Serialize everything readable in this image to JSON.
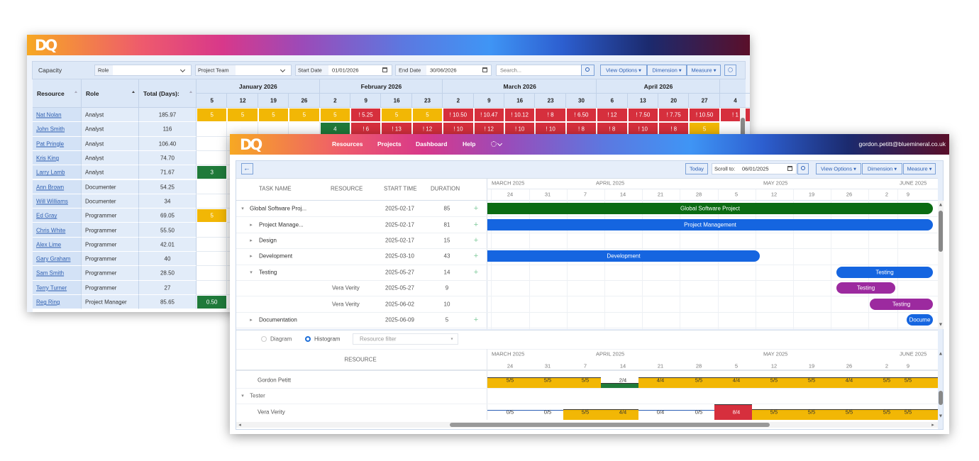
{
  "capacity_window": {
    "logo": "DQ",
    "toolbar": {
      "title": "Capacity",
      "role_filter": "Role",
      "team_filter": "Project Team",
      "start_label": "Start Date",
      "start_date": "01/01/2026",
      "end_label": "End Date",
      "end_date": "30/06/2026",
      "search_placeholder": "Search...",
      "buttons": [
        "View Options ▾",
        "Dimension ▾",
        "Measure ▾"
      ]
    },
    "columns": [
      "Resource",
      "Role",
      "Total (Days):"
    ],
    "months": [
      {
        "label": "January 2026",
        "weeks": [
          "5",
          "12",
          "19",
          "26"
        ]
      },
      {
        "label": "February 2026",
        "weeks": [
          "2",
          "9",
          "16",
          "23"
        ]
      },
      {
        "label": "March 2026",
        "weeks": [
          "2",
          "9",
          "16",
          "23",
          "30"
        ]
      },
      {
        "label": "April 2026",
        "weeks": [
          "6",
          "13",
          "20",
          "27"
        ]
      },
      {
        "label": null,
        "weeks": [
          "4"
        ]
      }
    ],
    "cell_colors": {
      "y": "#f2b705",
      "r": "#d62f3d",
      "g": "#1f7a3a"
    },
    "rows": [
      {
        "name": "Nat Nolan",
        "role": "Analyst",
        "total": "185.97",
        "cells": [
          "5",
          "5",
          "5",
          "5",
          "5",
          "! 5.25",
          "5",
          "5",
          "! 10.50",
          "! 10.47",
          "! 10.12",
          "! 8",
          "! 6.50",
          "! 12",
          "! 7.50",
          "! 7.75",
          "! 10.50",
          "! 1"
        ],
        "cell_status": [
          "y",
          "y",
          "y",
          "y",
          "y",
          "r",
          "y",
          "y",
          "r",
          "r",
          "r",
          "r",
          "r",
          "r",
          "r",
          "r",
          "r",
          "r"
        ]
      },
      {
        "name": "John Smith",
        "role": "Analyst",
        "total": "116",
        "cells": [
          null,
          null,
          null,
          null,
          "4",
          "! 6",
          "! 13",
          "! 12",
          "! 10",
          "! 12",
          "! 10",
          "! 10",
          "! 8",
          "! 8",
          "! 10",
          "! 8",
          "5",
          null
        ],
        "cell_status": [
          null,
          null,
          null,
          null,
          "g",
          "r",
          "r",
          "r",
          "r",
          "r",
          "r",
          "r",
          "r",
          "r",
          "r",
          "r",
          "y",
          null
        ]
      },
      {
        "name": "Pat Pringle",
        "role": "Analyst",
        "total": "106.40",
        "cells": [],
        "cell_status": []
      },
      {
        "name": "Kris King",
        "role": "Analyst",
        "total": "74.70",
        "cells": [],
        "cell_status": []
      },
      {
        "name": "Larry Lamb",
        "role": "Analyst",
        "total": "71.67",
        "cells": [
          "3"
        ],
        "cell_status": [
          "g"
        ]
      },
      {
        "name": "Ann Brown",
        "role": "Documenter",
        "total": "54.25",
        "cells": [],
        "cell_status": []
      },
      {
        "name": "Will Williams",
        "role": "Documenter",
        "total": "34",
        "cells": [],
        "cell_status": []
      },
      {
        "name": "Ed Gray",
        "role": "Programmer",
        "total": "69.05",
        "cells": [
          "5"
        ],
        "cell_status": [
          "y"
        ]
      },
      {
        "name": "Chris White",
        "role": "Programmer",
        "total": "55.50",
        "cells": [],
        "cell_status": []
      },
      {
        "name": "Alex Lime",
        "role": "Programmer",
        "total": "42.01",
        "cells": [],
        "cell_status": []
      },
      {
        "name": "Gary Graham",
        "role": "Programmer",
        "total": "40",
        "cells": [],
        "cell_status": []
      },
      {
        "name": "Sam Smith",
        "role": "Programmer",
        "total": "28.50",
        "cells": [],
        "cell_status": []
      },
      {
        "name": "Terry Turner",
        "role": "Programmer",
        "total": "27",
        "cells": [],
        "cell_status": []
      },
      {
        "name": "Reg Ring",
        "role": "Project Manager",
        "total": "85.65",
        "cells": [
          "0.50"
        ],
        "cell_status": [
          "g"
        ]
      }
    ]
  },
  "planner_window": {
    "logo": "DQ",
    "nav": [
      "Resources",
      "Projects",
      "Dashboard",
      "Help"
    ],
    "user": "gordon.petitt@bluemineral.co.uk",
    "toolbar": {
      "today": "Today",
      "scroll_label": "Scroll to:",
      "scroll_date": "06/01/2025",
      "buttons": [
        "View Options ▾",
        "Dimension ▾",
        "Measure ▾"
      ]
    },
    "grid_columns": [
      "TASK NAME",
      "RESOURCE",
      "START TIME",
      "DURATION"
    ],
    "timeline": {
      "months": [
        "MARCH 2025",
        "APRIL 2025",
        "MAY 2025",
        "JUNE 2025"
      ],
      "weeks": [
        "24",
        "31",
        "7",
        "14",
        "21",
        "28",
        "5",
        "12",
        "19",
        "26",
        "2",
        "9"
      ]
    },
    "tasks": [
      {
        "name": "Global Software Proj...",
        "resource": null,
        "start": "2025-02-17",
        "duration": 85,
        "bar_label": "Global Software Project",
        "bar_color": "#0b6b12"
      },
      {
        "name": "Project Manage...",
        "resource": null,
        "start": "2025-02-17",
        "duration": 81,
        "bar_label": "Project Management",
        "bar_color": "#1565e0"
      },
      {
        "name": "Design",
        "resource": null,
        "start": "2025-02-17",
        "duration": 15,
        "bar_label": null,
        "bar_color": null
      },
      {
        "name": "Development",
        "resource": null,
        "start": "2025-03-10",
        "duration": 43,
        "bar_label": "Development",
        "bar_color": "#1565e0"
      },
      {
        "name": "Testing",
        "resource": null,
        "start": "2025-05-27",
        "duration": 14,
        "bar_label": "Testing",
        "bar_color": "#1565e0"
      },
      {
        "name": null,
        "resource": "Vera Verity",
        "start": "2025-05-27",
        "duration": 9,
        "bar_label": "Testing",
        "bar_color": "#9c2a9f"
      },
      {
        "name": null,
        "resource": "Vera Verity",
        "start": "2025-06-02",
        "duration": 10,
        "bar_label": "Testing",
        "bar_color": "#9c2a9f"
      },
      {
        "name": "Documentation",
        "resource": null,
        "start": "2025-06-09",
        "duration": 5,
        "bar_label": "Docume",
        "bar_color": "#1565e0"
      }
    ],
    "histogram": {
      "modes": [
        "Diagram",
        "Histogram"
      ],
      "filter_placeholder": "Resource filter",
      "column": "RESOURCE",
      "months": [
        "MARCH 2025",
        "APRIL 2025",
        "MAY 2025",
        "JUNE 2025"
      ],
      "weeks": [
        "24",
        "31",
        "7",
        "14",
        "21",
        "28",
        "5",
        "12",
        "19",
        "26",
        "2",
        "9"
      ],
      "colors": {
        "over": "#d62f3d",
        "full": "#f2b705",
        "under": "#1f7a3a"
      },
      "resource": {
        "name": "Gordon Petitt",
        "cells": [
          "5/5",
          "5/5",
          "5/5",
          "2/4",
          "4/4",
          "5/5",
          "4/4",
          "5/5",
          "5/5",
          "4/4",
          "5/5",
          "5/5"
        ]
      },
      "group": "Tester",
      "group_resource": {
        "name": "Vera Verity",
        "cells": [
          "0/5",
          "0/5",
          "5/5",
          "4/4",
          "0/4",
          "0/5",
          "8/4",
          "5/5",
          "5/5",
          "5/5",
          "5/5",
          "5/5"
        ]
      }
    }
  }
}
